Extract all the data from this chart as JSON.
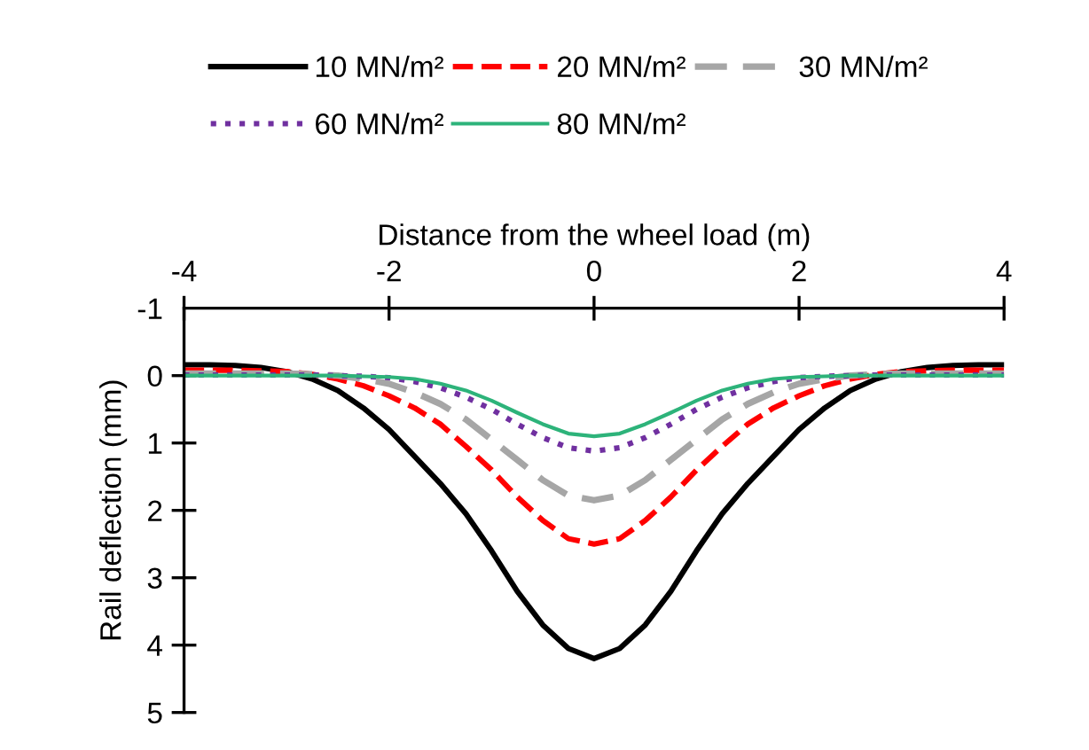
{
  "chart_data": {
    "type": "line",
    "xlabel": "Distance from the wheel load (m)",
    "ylabel": "Rail deflection (mm)",
    "x": [
      -4,
      -3.75,
      -3.5,
      -3.25,
      -3,
      -2.75,
      -2.5,
      -2.25,
      -2,
      -1.75,
      -1.5,
      -1.25,
      -1,
      -0.75,
      -0.5,
      -0.25,
      0,
      0.25,
      0.5,
      0.75,
      1,
      1.25,
      1.5,
      1.75,
      2,
      2.25,
      2.5,
      2.75,
      3,
      3.25,
      3.5,
      3.75,
      4
    ],
    "xlim": [
      -4,
      4
    ],
    "xticks": [
      -4,
      -2,
      0,
      2,
      4
    ],
    "ylim": [
      5,
      -1
    ],
    "yticks": [
      -1,
      0,
      1,
      2,
      3,
      4,
      5
    ],
    "grid": false,
    "legend": "top",
    "marker": "none",
    "series": [
      {
        "name": "10 MN/m²",
        "color": "#000000",
        "line_style": "solid",
        "values": [
          -0.16,
          -0.16,
          -0.15,
          -0.12,
          -0.06,
          0.05,
          0.22,
          0.48,
          0.8,
          1.2,
          1.6,
          2.05,
          2.6,
          3.2,
          3.7,
          4.05,
          4.2,
          4.05,
          3.7,
          3.2,
          2.6,
          2.05,
          1.6,
          1.2,
          0.8,
          0.48,
          0.22,
          0.05,
          -0.06,
          -0.12,
          -0.15,
          -0.16,
          -0.16
        ]
      },
      {
        "name": "20 MN/m²",
        "color": "#ff0000",
        "line_style": "dashed",
        "values": [
          -0.08,
          -0.08,
          -0.08,
          -0.07,
          -0.06,
          -0.02,
          0.05,
          0.15,
          0.3,
          0.48,
          0.72,
          1.05,
          1.4,
          1.8,
          2.15,
          2.42,
          2.5,
          2.42,
          2.15,
          1.8,
          1.4,
          1.05,
          0.72,
          0.48,
          0.3,
          0.15,
          0.05,
          -0.02,
          -0.06,
          -0.07,
          -0.08,
          -0.08,
          -0.08
        ]
      },
      {
        "name": "30 MN/m²",
        "color": "#a6a6a6",
        "line_style": "dashed",
        "values": [
          -0.03,
          -0.03,
          -0.03,
          -0.03,
          -0.03,
          -0.02,
          0,
          0.05,
          0.12,
          0.25,
          0.42,
          0.65,
          0.95,
          1.25,
          1.55,
          1.78,
          1.85,
          1.78,
          1.55,
          1.25,
          0.95,
          0.65,
          0.42,
          0.25,
          0.12,
          0.05,
          0,
          -0.02,
          -0.03,
          -0.03,
          -0.03,
          -0.03,
          -0.03
        ]
      },
      {
        "name": "60 MN/m²",
        "color": "#7030a0",
        "line_style": "dotted",
        "values": [
          -0.01,
          -0.01,
          -0.01,
          -0.01,
          -0.01,
          -0.01,
          0,
          0.01,
          0.03,
          0.09,
          0.18,
          0.32,
          0.5,
          0.72,
          0.92,
          1.07,
          1.12,
          1.07,
          0.92,
          0.72,
          0.5,
          0.32,
          0.18,
          0.09,
          0.03,
          0.01,
          0,
          -0.01,
          -0.01,
          -0.01,
          -0.01,
          -0.01,
          -0.01
        ]
      },
      {
        "name": "80 MN/m²",
        "color": "#2db37a",
        "line_style": "solid",
        "values": [
          0,
          0,
          0,
          0,
          0,
          0,
          0,
          0.01,
          0.02,
          0.05,
          0.12,
          0.22,
          0.37,
          0.55,
          0.72,
          0.86,
          0.9,
          0.86,
          0.72,
          0.55,
          0.37,
          0.22,
          0.12,
          0.05,
          0.02,
          0.01,
          0,
          0,
          0,
          0,
          0,
          0,
          0
        ]
      }
    ]
  }
}
